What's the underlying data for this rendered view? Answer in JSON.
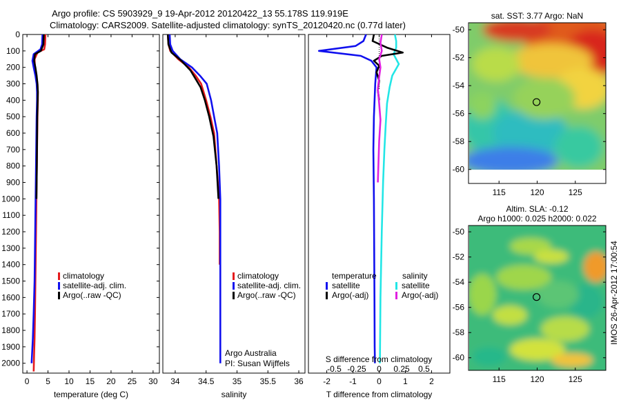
{
  "figure": {
    "title_line1": "Argo profile: CS 5903929_9 19-Apr-2012 20120422_13 55.178S 119.919E",
    "title_line2": "Climatology: CARS2009. Satellite-adjusted climatology: synTS_20120420.nc (0.77d later)",
    "stamp": "IMOS 26-Apr-2012 17:00:54",
    "credit_line1": "Argo Australia",
    "credit_line2": "PI: Susan Wijffels"
  },
  "colors": {
    "climatology": "#e41a1c",
    "satellite": "#1010ee",
    "argo": "#000000",
    "sal_satellite": "#22e6e6",
    "sal_argo": "#e020e0"
  },
  "chart_data": [
    {
      "id": "temperature",
      "type": "line",
      "xlabel": "temperature (deg C)",
      "ylabel": "",
      "xlim": [
        -1,
        31.5
      ],
      "ylim": [
        0,
        2060
      ],
      "y_reversed": true,
      "xticks": [
        0,
        5,
        10,
        15,
        20,
        25,
        30
      ],
      "xtick_labels": [
        "0",
        "5",
        "10",
        "15",
        "20",
        "25",
        "30"
      ],
      "yticks": [
        0,
        100,
        200,
        300,
        400,
        500,
        600,
        700,
        800,
        900,
        1000,
        1100,
        1200,
        1300,
        1400,
        1500,
        1600,
        1700,
        1800,
        1900,
        2000
      ],
      "ytick_labels": [
        "0",
        "100",
        "200",
        "300",
        "400",
        "500",
        "600",
        "700",
        "800",
        "900",
        "1000",
        "1100",
        "1200",
        "1300",
        "1400",
        "1500",
        "1600",
        "1700",
        "1800",
        "1900",
        "2000"
      ],
      "legend": [
        "climatology",
        "satellite-adj. clim.",
        "Argo(..raw -QC)"
      ],
      "legend_placement": "lower-middle",
      "series": [
        {
          "name": "climatology",
          "color_key": "climatology",
          "x": [
            4.4,
            4.3,
            4.1,
            2.5,
            1.8,
            1.9,
            2.2,
            2.5,
            2.6,
            2.6,
            2.5,
            2.4,
            2.3,
            2.2,
            2.1,
            2.0,
            1.9,
            1.8,
            1.7,
            1.65,
            1.6
          ],
          "y": [
            0,
            60,
            90,
            110,
            150,
            200,
            250,
            300,
            350,
            400,
            500,
            700,
            900,
            1100,
            1300,
            1500,
            1700,
            1850,
            1950,
            2000,
            2050
          ]
        },
        {
          "name": "satellite-adj. clim.",
          "color_key": "satellite",
          "x": [
            3.7,
            3.6,
            3.2,
            1.6,
            1.3,
            1.6,
            2.0,
            2.3,
            2.4,
            2.4,
            2.3,
            2.2,
            2.1,
            2.0,
            1.9,
            1.8,
            1.6,
            1.4,
            1.2,
            1.1
          ],
          "y": [
            0,
            60,
            90,
            120,
            160,
            200,
            250,
            300,
            350,
            400,
            500,
            700,
            900,
            1100,
            1300,
            1500,
            1700,
            1850,
            1950,
            2000
          ]
        },
        {
          "name": "Argo(..raw -QC)",
          "color_key": "argo",
          "x": [
            4.0,
            3.9,
            3.3,
            1.9,
            1.7,
            2.0,
            2.3,
            2.5,
            2.6,
            2.55,
            2.45,
            2.35,
            2.25
          ],
          "y": [
            0,
            60,
            100,
            120,
            160,
            200,
            250,
            300,
            350,
            400,
            500,
            800,
            1000
          ]
        }
      ]
    },
    {
      "id": "salinity",
      "type": "line",
      "xlabel": "salinity",
      "ylabel": "",
      "xlim": [
        33.8,
        36.1
      ],
      "ylim": [
        0,
        2060
      ],
      "y_reversed": true,
      "xticks": [
        34,
        34.5,
        35,
        35.5,
        36
      ],
      "xtick_labels": [
        "34",
        "34.5",
        "35",
        "35.5",
        "36"
      ],
      "legend": [
        "climatology",
        "satellite-adj. clim.",
        "Argo(..raw -QC)"
      ],
      "legend_placement": "lower-right",
      "series": [
        {
          "name": "climatology",
          "color_key": "climatology",
          "x": [
            33.88,
            33.89,
            33.92,
            34.05,
            34.22,
            34.33,
            34.42,
            34.5,
            34.57,
            34.63,
            34.67,
            34.71,
            34.72,
            34.72,
            34.72
          ],
          "y": [
            0,
            60,
            100,
            150,
            200,
            250,
            300,
            400,
            500,
            600,
            800,
            1000,
            1200,
            1350,
            1400
          ]
        },
        {
          "name": "satellite-adj. clim.",
          "color_key": "satellite",
          "x": [
            33.91,
            33.92,
            33.96,
            34.08,
            34.27,
            34.4,
            34.51,
            34.58,
            34.63,
            34.68,
            34.71,
            34.73,
            34.73,
            34.73,
            34.73
          ],
          "y": [
            0,
            60,
            100,
            150,
            200,
            250,
            300,
            400,
            500,
            600,
            800,
            1000,
            1400,
            1700,
            2000
          ]
        },
        {
          "name": "Argo(..raw -QC)",
          "color_key": "argo",
          "x": [
            33.88,
            33.89,
            33.94,
            34.1,
            34.25,
            34.33,
            34.41,
            34.48,
            34.55,
            34.62,
            34.67,
            34.7
          ],
          "y": [
            0,
            60,
            110,
            160,
            220,
            270,
            320,
            400,
            500,
            620,
            800,
            1000
          ]
        }
      ]
    },
    {
      "id": "difference",
      "type": "line",
      "xlabel": "T difference from climatology",
      "xlabel_top": "S difference from climatology",
      "xlim": [
        -2.7,
        2.7
      ],
      "ylim": [
        0,
        2060
      ],
      "y_reversed": true,
      "xticks": [
        -2,
        -1,
        0,
        1,
        2
      ],
      "xtick_labels": [
        "-2",
        "-1",
        "0",
        "1",
        "2"
      ],
      "xticks_top": [
        -0.5,
        -0.25,
        0,
        0.25,
        0.5
      ],
      "xtick_labels_top": [
        "-0.5",
        "-0.25",
        "0",
        "0.25",
        "0.5"
      ],
      "legend_groups": [
        {
          "heading": "temperature",
          "items": [
            "satellite",
            "Argo(-adj)"
          ]
        },
        {
          "heading": "salinity",
          "items": [
            "satellite",
            "Argo(-adj)"
          ]
        }
      ],
      "legend_placement": "lower-middle",
      "series": [
        {
          "name": "temperature satellite",
          "color_key": "satellite",
          "x": [
            -0.5,
            -0.6,
            -0.9,
            -2.3,
            -0.7,
            -0.3,
            -0.1,
            -0.15,
            -0.2,
            -0.22,
            -0.2,
            -0.19,
            -0.18,
            -0.17,
            -0.16
          ],
          "y": [
            0,
            40,
            70,
            100,
            130,
            160,
            200,
            300,
            500,
            700,
            1000,
            1300,
            1600,
            1900,
            2000
          ]
        },
        {
          "name": "salinity satellite",
          "color_key": "sal_satellite",
          "x": [
            0.6,
            0.65,
            0.65,
            0.55,
            0.75,
            0.5,
            0.4,
            0.3,
            0.25,
            0.2,
            0.15,
            0.1,
            0.05,
            0.03
          ],
          "y": [
            0,
            40,
            80,
            120,
            180,
            250,
            320,
            420,
            550,
            700,
            900,
            1200,
            1600,
            2000
          ]
        },
        {
          "name": "temperature Argo(-adj)",
          "color_key": "argo",
          "x": [
            -0.2,
            -0.25,
            0.3,
            0.9,
            0.1,
            -0.2,
            0.0,
            -0.1,
            0.0,
            -0.05,
            0.0
          ],
          "y": [
            0,
            40,
            80,
            110,
            130,
            160,
            190,
            230,
            280,
            340,
            400
          ]
        },
        {
          "name": "salinity Argo(-adj)",
          "color_key": "sal_argo",
          "x": [
            0.1,
            0.05,
            0.1,
            0.0,
            0.05,
            0.0,
            -0.05,
            0.0,
            0.05,
            0.0,
            -0.05
          ],
          "y": [
            0,
            50,
            100,
            150,
            200,
            260,
            330,
            420,
            520,
            650,
            900
          ]
        }
      ]
    },
    {
      "id": "sst_map",
      "type": "heatmap",
      "title": "sat. SST: 3.77  Argo: NaN",
      "xlim": [
        111,
        129
      ],
      "ylim": [
        -61,
        -49.5
      ],
      "xticks": [
        115,
        120,
        125
      ],
      "xtick_labels": [
        "115",
        "120",
        "125"
      ],
      "yticks": [
        -50,
        -52,
        -54,
        -56,
        -58,
        -60
      ],
      "ytick_labels": [
        "-50",
        "-52",
        "-54",
        "-56",
        "-58",
        "-60"
      ],
      "marker": {
        "lon": 119.919,
        "lat": -55.178
      },
      "colormap": "jet"
    },
    {
      "id": "sla_map",
      "type": "heatmap",
      "title_line1": "Altim. SLA: -0.12",
      "title_line2": "Argo h1000: 0.025 h2000: 0.022",
      "xlim": [
        111,
        129
      ],
      "ylim": [
        -61,
        -49.5
      ],
      "xticks": [
        115,
        120,
        125
      ],
      "xtick_labels": [
        "115",
        "120",
        "125"
      ],
      "yticks": [
        -50,
        -52,
        -54,
        -56,
        -58,
        -60
      ],
      "ytick_labels": [
        "-50",
        "-52",
        "-54",
        "-56",
        "-58",
        "-60"
      ],
      "marker": {
        "lon": 119.919,
        "lat": -55.178
      },
      "colormap": "jet"
    }
  ]
}
